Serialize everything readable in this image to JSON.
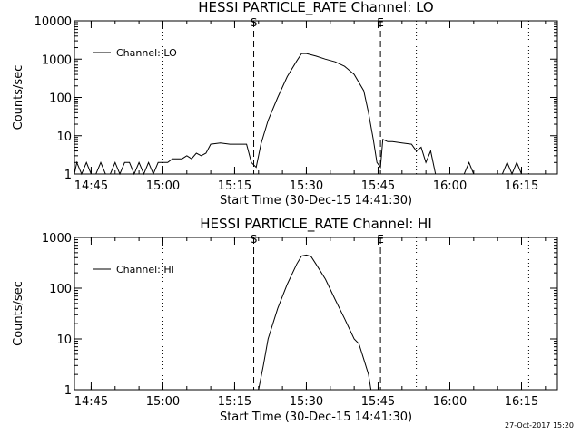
{
  "footer": {
    "timestamp": "27-Oct-2017 15:20"
  },
  "chart_data": [
    {
      "type": "line",
      "title": "HESSI PARTICLE_RATE Channel: LO",
      "xlabel": "Start Time (30-Dec-15 14:41:30)",
      "ylabel": "Counts/sec",
      "yscale": "log",
      "xlim": [
        "14:41:30",
        "16:22:30"
      ],
      "ylim": [
        1,
        10000
      ],
      "xticks": [
        "14:45",
        "15:00",
        "15:15",
        "15:30",
        "15:45",
        "16:00",
        "16:15"
      ],
      "yticks": [
        "1",
        "10",
        "100",
        "1000",
        "10000"
      ],
      "legend": {
        "label": "Channel: LO",
        "placement": "top-left"
      },
      "markers": [
        {
          "label": "S",
          "time": "15:19:00",
          "style": "dashed"
        },
        {
          "label": "E",
          "time": "15:45:30",
          "style": "dashed"
        }
      ],
      "dotted_lines": [
        "15:00:00",
        "15:53:00",
        "16:16:30"
      ],
      "series": [
        {
          "name": "Channel: LO",
          "x": [
            "14:41:30",
            "14:42:00",
            "14:43:00",
            "14:44:00",
            "14:45:00",
            "14:46:00",
            "14:47:00",
            "14:48:00",
            "14:49:00",
            "14:50:00",
            "14:51:00",
            "14:52:00",
            "14:53:00",
            "14:54:00",
            "14:55:00",
            "14:56:00",
            "14:57:00",
            "14:58:00",
            "14:59:00",
            "15:00:00",
            "15:01:00",
            "15:02:00",
            "15:03:00",
            "15:04:00",
            "15:05:00",
            "15:06:00",
            "15:07:00",
            "15:08:00",
            "15:09:00",
            "15:10:00",
            "15:12:00",
            "15:14:00",
            "15:16:00",
            "15:17:30",
            "15:18:30",
            "15:19:30",
            "15:20:30",
            "15:22:00",
            "15:24:00",
            "15:26:00",
            "15:28:00",
            "15:29:00",
            "15:30:00",
            "15:32:00",
            "15:34:00",
            "15:36:00",
            "15:38:00",
            "15:40:00",
            "15:42:00",
            "15:43:00",
            "15:44:00",
            "15:44:45",
            "15:45:30",
            "15:46:00",
            "15:47:00",
            "15:48:00",
            "15:50:00",
            "15:52:00",
            "15:53:00",
            "15:54:00",
            "15:55:00",
            "15:56:00",
            "15:57:00",
            "15:58:00",
            "15:59:00",
            "16:00:00",
            "16:01:00",
            "16:02:00",
            "16:03:00",
            "16:04:00",
            "16:05:00",
            "16:06:00",
            "16:07:00",
            "16:08:00",
            "16:09:00",
            "16:10:00",
            "16:11:00",
            "16:12:00",
            "16:13:00",
            "16:14:00",
            "16:15:00",
            "16:16:00"
          ],
          "y": [
            1,
            2,
            1,
            2,
            1,
            1,
            2,
            1,
            1,
            2,
            1,
            2,
            2,
            1,
            2,
            1,
            2,
            1,
            2,
            2,
            2,
            2.5,
            2.5,
            2.5,
            3,
            2.5,
            3.5,
            3,
            3.5,
            6,
            6.5,
            6,
            6,
            6,
            2,
            1.5,
            6,
            25,
            100,
            350,
            900,
            1400,
            1400,
            1200,
            1000,
            850,
            650,
            400,
            150,
            40,
            8,
            2,
            1.5,
            8,
            7,
            7,
            6.5,
            6,
            4,
            5,
            2,
            4,
            1,
            1,
            1,
            1,
            1,
            1,
            1,
            2,
            1,
            1,
            1,
            1,
            1,
            1,
            1,
            2,
            1,
            2,
            1,
            1
          ]
        }
      ]
    },
    {
      "type": "line",
      "title": "HESSI PARTICLE_RATE Channel: HI",
      "xlabel": "Start Time (30-Dec-15 14:41:30)",
      "ylabel": "Counts/sec",
      "yscale": "log",
      "xlim": [
        "14:41:30",
        "16:22:30"
      ],
      "ylim": [
        1,
        1000
      ],
      "xticks": [
        "14:45",
        "15:00",
        "15:15",
        "15:30",
        "15:45",
        "16:00",
        "16:15"
      ],
      "yticks": [
        "1",
        "10",
        "100",
        "1000"
      ],
      "legend": {
        "label": "Channel: HI",
        "placement": "top-left"
      },
      "markers": [
        {
          "label": "S",
          "time": "15:19:00",
          "style": "dashed"
        },
        {
          "label": "E",
          "time": "15:45:30",
          "style": "dashed"
        }
      ],
      "dotted_lines": [
        "15:00:00",
        "15:53:00",
        "16:16:30"
      ],
      "series": [
        {
          "name": "Channel: HI",
          "x": [
            "15:20:00",
            "15:21:00",
            "15:22:00",
            "15:24:00",
            "15:26:00",
            "15:28:00",
            "15:29:00",
            "15:30:00",
            "15:31:00",
            "15:32:00",
            "15:34:00",
            "15:36:00",
            "15:38:00",
            "15:40:00",
            "15:41:00",
            "15:42:00",
            "15:43:00",
            "15:43:30"
          ],
          "y": [
            1,
            3,
            10,
            40,
            120,
            300,
            430,
            450,
            420,
            300,
            150,
            60,
            25,
            10,
            8,
            4,
            2,
            1
          ]
        }
      ]
    }
  ]
}
